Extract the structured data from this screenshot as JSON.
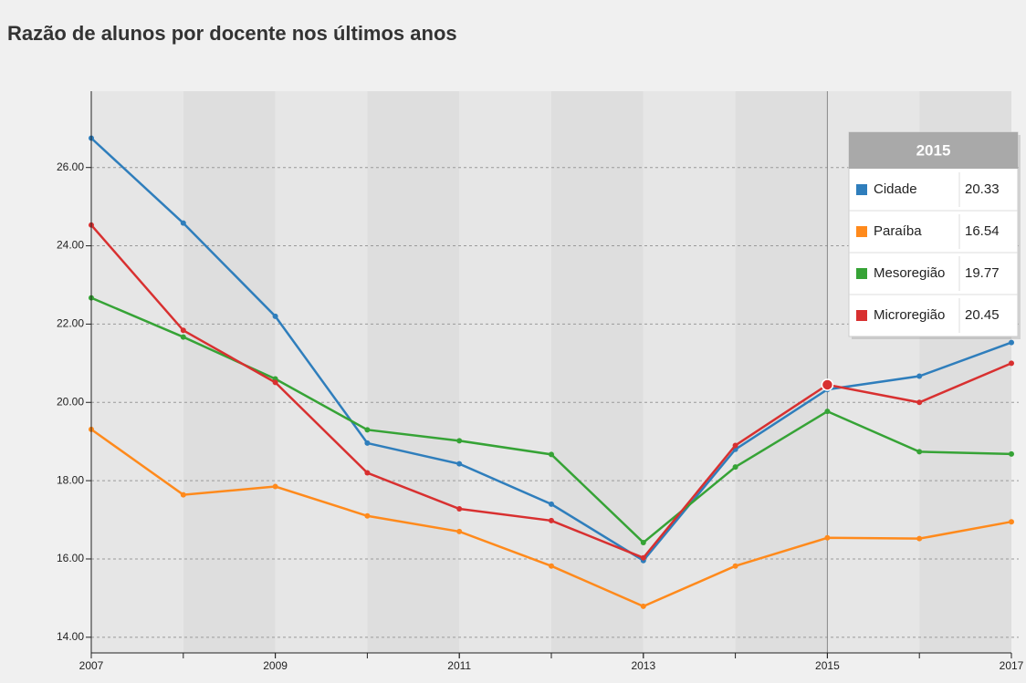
{
  "chart_data": {
    "type": "line",
    "title": "Razão de alunos por docente nos últimos anos",
    "x": [
      2007,
      2008,
      2009,
      2010,
      2011,
      2012,
      2013,
      2014,
      2015,
      2016,
      2017
    ],
    "xlim": [
      2007,
      2017
    ],
    "xticks": [
      2007,
      2009,
      2011,
      2013,
      2015,
      2017
    ],
    "ylim": [
      13.6,
      27.95
    ],
    "yticks": [
      {
        "value": 14,
        "label": "14.00"
      },
      {
        "value": 16,
        "label": "16.00"
      },
      {
        "value": 18,
        "label": "18.00"
      },
      {
        "value": 20,
        "label": "20.00"
      },
      {
        "value": 22,
        "label": "22.00"
      },
      {
        "value": 24,
        "label": "24.00"
      },
      {
        "value": 26,
        "label": "26.00"
      }
    ],
    "grid": true,
    "hover_x": 2015,
    "series": [
      {
        "name": "Cidade",
        "color": "#2f7ebc",
        "values": [
          26.75,
          24.58,
          22.2,
          18.96,
          18.43,
          17.4,
          15.96,
          18.8,
          20.33,
          20.67,
          21.53
        ]
      },
      {
        "name": "Paraíba",
        "color": "#ff8a1c",
        "values": [
          19.31,
          17.64,
          17.85,
          17.1,
          16.7,
          15.82,
          14.79,
          15.82,
          16.54,
          16.52,
          16.95
        ]
      },
      {
        "name": "Mesoregião",
        "color": "#36a336",
        "values": [
          22.67,
          21.67,
          20.6,
          19.3,
          19.02,
          18.67,
          16.42,
          18.35,
          19.77,
          18.74,
          18.68
        ]
      },
      {
        "name": "Microregião",
        "color": "#d83030",
        "values": [
          24.53,
          21.84,
          20.51,
          18.2,
          17.28,
          16.98,
          16.03,
          18.9,
          20.45,
          20.0,
          21.0
        ]
      }
    ]
  }
}
